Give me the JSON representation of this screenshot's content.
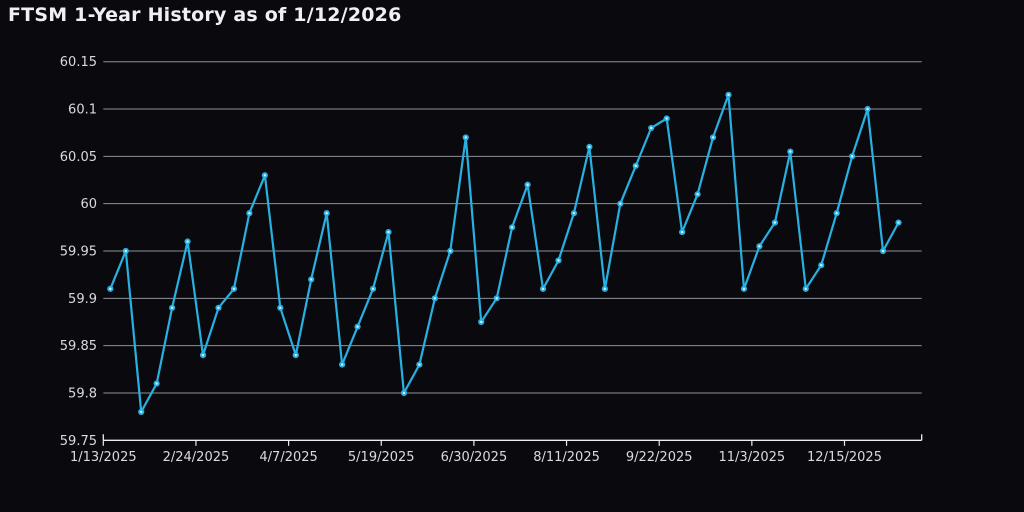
{
  "page": {
    "title": "FTSM 1-Year History as of 1/12/2026"
  },
  "colors": {
    "background": "#0a0a0e",
    "line": "#29b0e2",
    "marker_center": "#d9f3fd",
    "gridline": "#8b9097",
    "axis": "#eeeeee",
    "title_text": "#eef0f5",
    "tick_text": "#d9dade"
  },
  "chart_data": {
    "type": "line",
    "title": "FTSM 1-Year History as of 1/12/2026",
    "xlabel": "",
    "ylabel": "",
    "legend": "none",
    "grid": "horizontal",
    "marker": "circle-dot",
    "x_unit": "weekly observations",
    "series": [
      {
        "name": "FTSM",
        "values": [
          59.91,
          59.95,
          59.78,
          59.81,
          59.89,
          59.96,
          59.84,
          59.89,
          59.91,
          59.99,
          60.03,
          59.89,
          59.84,
          59.92,
          59.99,
          59.83,
          59.87,
          59.91,
          59.97,
          59.8,
          59.83,
          59.9,
          59.95,
          60.07,
          59.875,
          59.9,
          59.975,
          60.02,
          59.91,
          59.94,
          59.99,
          60.06,
          59.91,
          60.0,
          60.04,
          60.08,
          60.09,
          59.97,
          60.01,
          60.07,
          60.115,
          59.91,
          59.955,
          59.98,
          60.055,
          59.91,
          59.935,
          59.99,
          60.05,
          60.1,
          59.95,
          59.98
        ]
      }
    ],
    "x_ticks": [
      {
        "label": "1/13/2025"
      },
      {
        "label": "2/24/2025"
      },
      {
        "label": "4/7/2025"
      },
      {
        "label": "5/19/2025"
      },
      {
        "label": "6/30/2025"
      },
      {
        "label": "8/11/2025"
      },
      {
        "label": "9/22/2025"
      },
      {
        "label": "11/3/2025"
      },
      {
        "label": "12/15/2025"
      }
    ],
    "y_ticks": [
      {
        "label": "59.75",
        "value": 59.75
      },
      {
        "label": "59.8",
        "value": 59.8
      },
      {
        "label": "59.85",
        "value": 59.85
      },
      {
        "label": "59.9",
        "value": 59.9
      },
      {
        "label": "59.95",
        "value": 59.95
      },
      {
        "label": "60",
        "value": 60.0
      },
      {
        "label": "60.05",
        "value": 60.05
      },
      {
        "label": "60.1",
        "value": 60.1
      },
      {
        "label": "60.15",
        "value": 60.15
      }
    ],
    "ylim": [
      59.75,
      60.165
    ]
  }
}
